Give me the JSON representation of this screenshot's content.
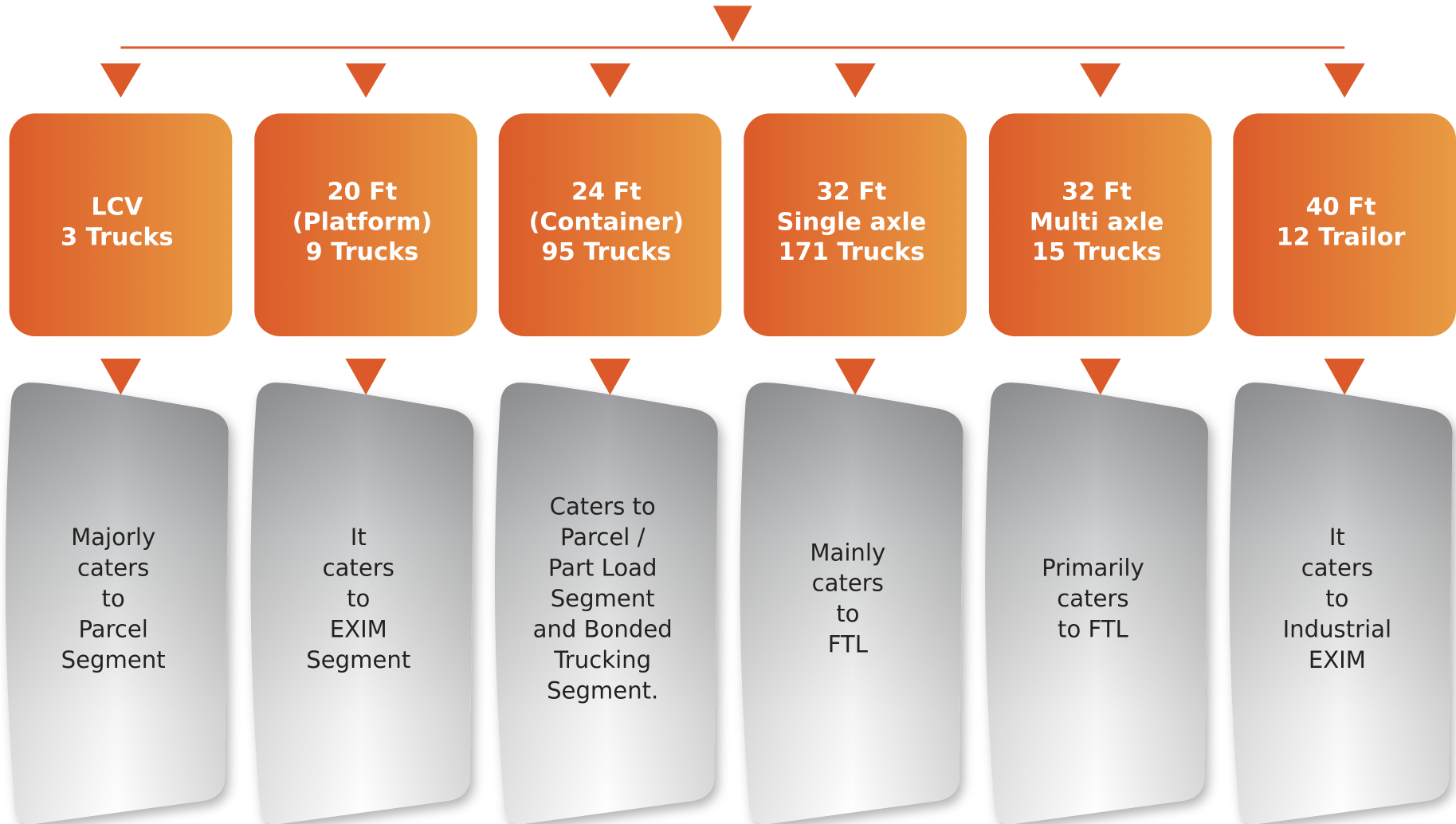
{
  "columns": [
    {
      "box": [
        "LCV",
        "3 Trucks"
      ],
      "description": [
        "Majorly",
        "caters",
        "to",
        "Parcel",
        "Segment"
      ]
    },
    {
      "box": [
        "20 Ft",
        "(Platform)",
        "9 Trucks"
      ],
      "description": [
        "It",
        "caters",
        "to",
        "EXIM",
        "Segment"
      ]
    },
    {
      "box": [
        "24 Ft",
        "(Container)",
        "95 Trucks"
      ],
      "description": [
        "Caters to",
        "Parcel /",
        "Part Load",
        "Segment",
        "and Bonded",
        "Trucking",
        "Segment."
      ]
    },
    {
      "box": [
        "32 Ft",
        "Single axle",
        "171 Trucks"
      ],
      "description": [
        "Mainly",
        "caters",
        "to",
        "FTL"
      ]
    },
    {
      "box": [
        "32 Ft",
        "Multi axle",
        "15 Trucks"
      ],
      "description": [
        "Primarily",
        "caters",
        "to FTL"
      ]
    },
    {
      "box": [
        "40 Ft",
        "12 Trailor"
      ],
      "description": [
        "It",
        "caters",
        "to",
        "Industrial",
        "EXIM"
      ]
    }
  ]
}
